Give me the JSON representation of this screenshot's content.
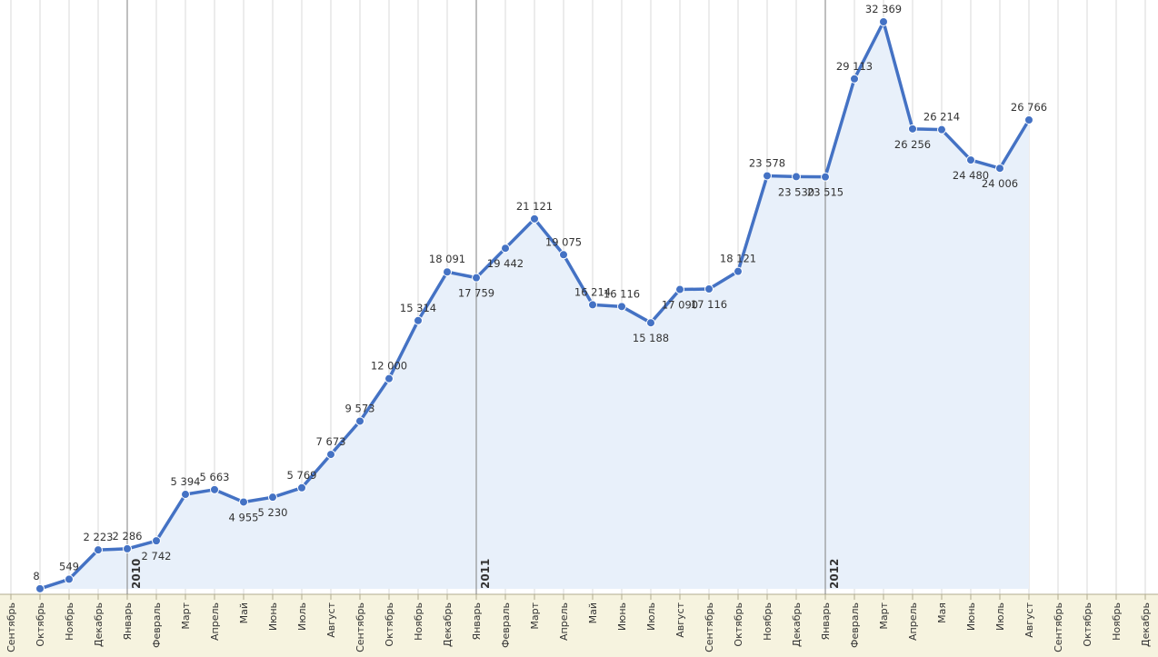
{
  "chart_data": {
    "type": "line",
    "title": "",
    "xlabel": "",
    "ylabel": "",
    "categories": [
      "Сентябрь",
      "Октябрь",
      "Ноябрь",
      "Декабрь",
      "Январь",
      "Февраль",
      "Март",
      "Апрель",
      "Май",
      "Июнь",
      "Июль",
      "Август",
      "Сентябрь",
      "Октябрь",
      "Ноябрь",
      "Декабрь",
      "Январь",
      "Февраль",
      "Март",
      "Апрель",
      "Май",
      "Июнь",
      "Июль",
      "Август",
      "Сентябрь",
      "Октябрь",
      "Ноябрь",
      "Декабрь",
      "Январь",
      "Февраль",
      "Март",
      "Апрель",
      "Мая",
      "Июнь",
      "Июль",
      "Август",
      "Сентябрь",
      "Октябрь",
      "Ноябрь",
      "Декабрь"
    ],
    "year_markers": [
      {
        "label": "2010",
        "category_index": 4
      },
      {
        "label": "2011",
        "category_index": 16
      },
      {
        "label": "2012",
        "category_index": 28
      }
    ],
    "series": [
      {
        "values": [
          null,
          8,
          549,
          2223,
          2286,
          2742,
          5394,
          5663,
          4955,
          5230,
          5769,
          7673,
          9573,
          12000,
          15314,
          18091,
          17759,
          19442,
          21121,
          19075,
          16214,
          16116,
          15188,
          17090,
          17116,
          18121,
          23578,
          23530,
          23515,
          29113,
          32369,
          26256,
          26214,
          24480,
          24006,
          26766,
          null,
          null,
          null,
          null
        ],
        "labels": [
          null,
          "8",
          "549",
          "2 223",
          "2 286",
          "2 742",
          "5 394",
          "5 663",
          "4 955",
          "5 230",
          "5 769",
          "7 673",
          "9 573",
          "12 000",
          "15 314",
          "18 091",
          "17 759",
          "19 442",
          "21 121",
          "19 075",
          "16 214",
          "16 116",
          "15 188",
          "17 090",
          "17 116",
          "18 121",
          "23 578",
          "23 530",
          "23 515",
          "29 113",
          "32 369",
          "26 256",
          "26 214",
          "24 480",
          "24 006",
          "26 766",
          null,
          null,
          null,
          null
        ],
        "label_pos": [
          null,
          "above",
          "above",
          "above",
          "above",
          "below",
          "above",
          "above",
          "below",
          "below",
          "above",
          "above",
          "above",
          "above",
          "above",
          "above",
          "below",
          "below",
          "above",
          "above",
          "above",
          "above",
          "below",
          "below",
          "below",
          "above",
          "above",
          "below",
          "below",
          "above",
          "above",
          "below",
          "above",
          "below",
          "below",
          "above",
          null,
          null,
          null,
          null
        ]
      }
    ],
    "ylim": [
      0,
      32369
    ],
    "grid": true,
    "legend": "none",
    "colors": {
      "line": "#4472c4",
      "area": "#e8f0fa",
      "grid": "#d9d9d9",
      "year_line": "#7f7f7f",
      "axis_band": "#f6f3df"
    }
  }
}
